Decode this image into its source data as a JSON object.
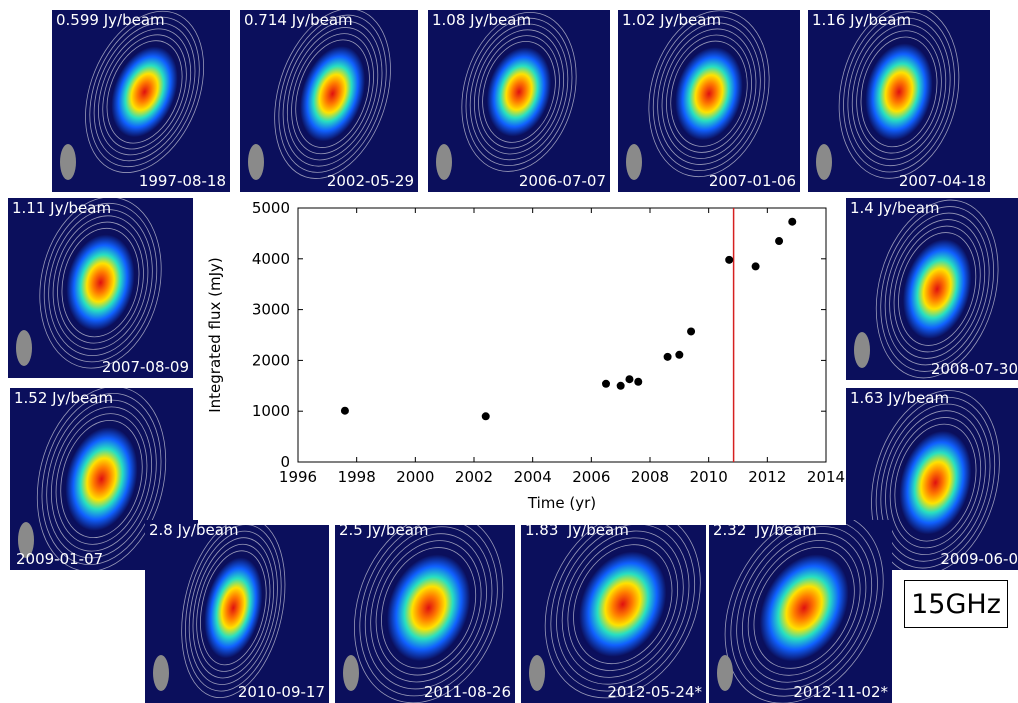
{
  "panels": [
    {
      "peak": "0.599 Jy/beam",
      "date": "1997-08-18"
    },
    {
      "peak": "0.714 Jy/beam",
      "date": "2002-05-29"
    },
    {
      "peak": "1.08 Jy/beam",
      "date": "2006-07-07"
    },
    {
      "peak": "1.02 Jy/beam",
      "date": "2007-01-06"
    },
    {
      "peak": "1.16 Jy/beam",
      "date": "2007-04-18"
    },
    {
      "peak": "1.11 Jy/beam",
      "date": "2007-08-09"
    },
    {
      "peak": "1.4 Jy/beam",
      "date": "2008-07-30"
    },
    {
      "peak": "1.52 Jy/beam",
      "date": "2009-01-07"
    },
    {
      "peak": "1.63 Jy/beam",
      "date": "2009-06-0"
    },
    {
      "peak": "2.8 Jy/beam",
      "date": "2010-09-17"
    },
    {
      "peak": "2.5 Jy/beam",
      "date": "2011-08-26"
    },
    {
      "peak": "1.83  Jy/beam",
      "date": "2012-05-24*"
    },
    {
      "peak": "2.32  Jy/beam",
      "date": "2012-11-02*"
    }
  ],
  "frequency_label": "15GHz",
  "chart_data": {
    "type": "scatter",
    "xlabel": "Time (yr)",
    "ylabel": "Integrated flux (mJy)",
    "xlim": [
      1996,
      2014
    ],
    "ylim": [
      0,
      5000
    ],
    "xticks": [
      1996,
      1998,
      2000,
      2002,
      2004,
      2006,
      2008,
      2010,
      2012,
      2014
    ],
    "yticks": [
      0,
      1000,
      2000,
      3000,
      4000,
      5000
    ],
    "points": [
      {
        "x": 1997.6,
        "y": 1010
      },
      {
        "x": 2002.4,
        "y": 900
      },
      {
        "x": 2006.5,
        "y": 1540
      },
      {
        "x": 2007.0,
        "y": 1500
      },
      {
        "x": 2007.3,
        "y": 1630
      },
      {
        "x": 2007.6,
        "y": 1580
      },
      {
        "x": 2008.6,
        "y": 2070
      },
      {
        "x": 2009.0,
        "y": 2110
      },
      {
        "x": 2009.4,
        "y": 2570
      },
      {
        "x": 2010.7,
        "y": 3980
      },
      {
        "x": 2011.6,
        "y": 3850
      },
      {
        "x": 2012.4,
        "y": 4350
      },
      {
        "x": 2012.85,
        "y": 4730
      }
    ],
    "vertical_line_x": 2010.85,
    "vertical_line_color": "#d62020",
    "marker_color": "#000000"
  }
}
